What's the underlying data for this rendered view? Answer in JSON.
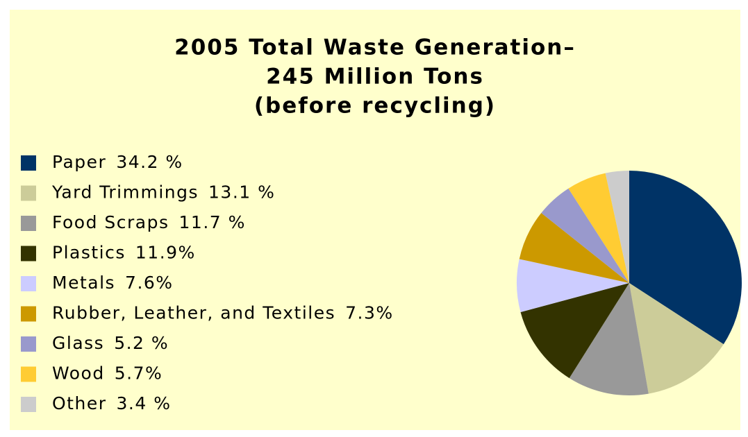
{
  "chart_data": {
    "type": "pie",
    "title": [
      "2005 Total Waste Generation–",
      "245 Million Tons",
      "(before recycling)"
    ],
    "categories": [
      "Paper",
      "Yard Trimmings",
      "Food Scraps",
      "Plastics",
      "Metals",
      "Rubber, Leather, and Textiles",
      "Glass",
      "Wood",
      "Other"
    ],
    "values": [
      34.2,
      13.1,
      11.7,
      11.9,
      7.6,
      7.3,
      5.2,
      5.7,
      3.4
    ],
    "value_labels": [
      "34.2 %",
      "13.1 %",
      "11.7 %",
      "11.9%",
      "7.6%",
      "7.3%",
      "5.2 %",
      "5.7%",
      "3.4 %"
    ],
    "colors": [
      "#003366",
      "#cccc99",
      "#999999",
      "#333300",
      "#ccccff",
      "#cc9900",
      "#9999cc",
      "#ffcc33",
      "#cccccc"
    ],
    "legend": "left"
  }
}
